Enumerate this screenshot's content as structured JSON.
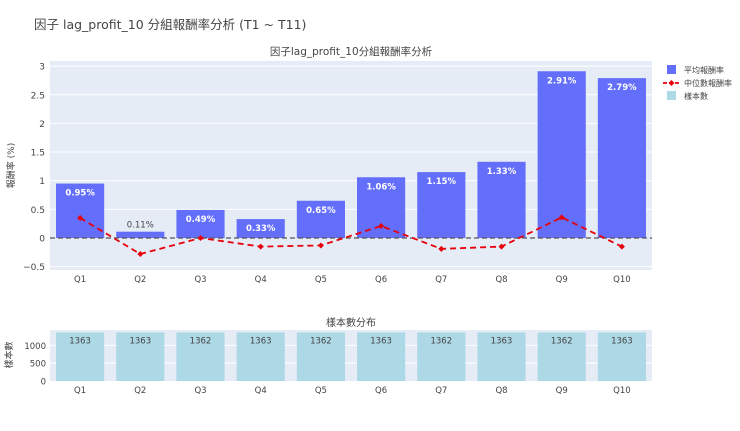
{
  "page_title": "因子 lag_profit_10 分組報酬率分析 (T1 ~ T11)",
  "chart_data": [
    {
      "type": "bar",
      "title": "因子lag_profit_10分組報酬率分析",
      "ylabel": "報酬率 (%)",
      "xlabel": "",
      "categories": [
        "Q1",
        "Q2",
        "Q3",
        "Q4",
        "Q5",
        "Q6",
        "Q7",
        "Q8",
        "Q9",
        "Q10"
      ],
      "ylim": [
        -0.5,
        3.05
      ],
      "yticks": [
        -0.5,
        0,
        0.5,
        1,
        1.5,
        2,
        2.5,
        3
      ],
      "grid": true,
      "legend_position": "top-right",
      "series": [
        {
          "name": "平均報酬率",
          "type": "bar",
          "color": "#636efa",
          "values": [
            0.95,
            0.11,
            0.49,
            0.33,
            0.65,
            1.06,
            1.15,
            1.33,
            2.91,
            2.79
          ],
          "labels": [
            "0.95%",
            "0.11%",
            "0.49%",
            "0.33%",
            "0.65%",
            "1.06%",
            "1.15%",
            "1.33%",
            "2.91%",
            "2.79%"
          ]
        },
        {
          "name": "中位數報酬率",
          "type": "line",
          "color": "#e8000b",
          "dash": "dash",
          "values": [
            0.35,
            -0.28,
            0.0,
            -0.15,
            -0.13,
            0.21,
            -0.19,
            -0.15,
            0.36,
            -0.15
          ]
        },
        {
          "name": "樣本數",
          "type": "bar",
          "color": "#add8e6"
        }
      ],
      "reference_line": 0
    },
    {
      "type": "bar",
      "title": "樣本數分布",
      "ylabel": "樣本數",
      "categories": [
        "Q1",
        "Q2",
        "Q3",
        "Q4",
        "Q5",
        "Q6",
        "Q7",
        "Q8",
        "Q9",
        "Q10"
      ],
      "values": [
        1363,
        1363,
        1362,
        1363,
        1362,
        1363,
        1362,
        1363,
        1362,
        1363
      ],
      "ylim": [
        0,
        1431
      ],
      "yticks": [
        0,
        500,
        1000
      ],
      "color": "#add8e6"
    }
  ]
}
